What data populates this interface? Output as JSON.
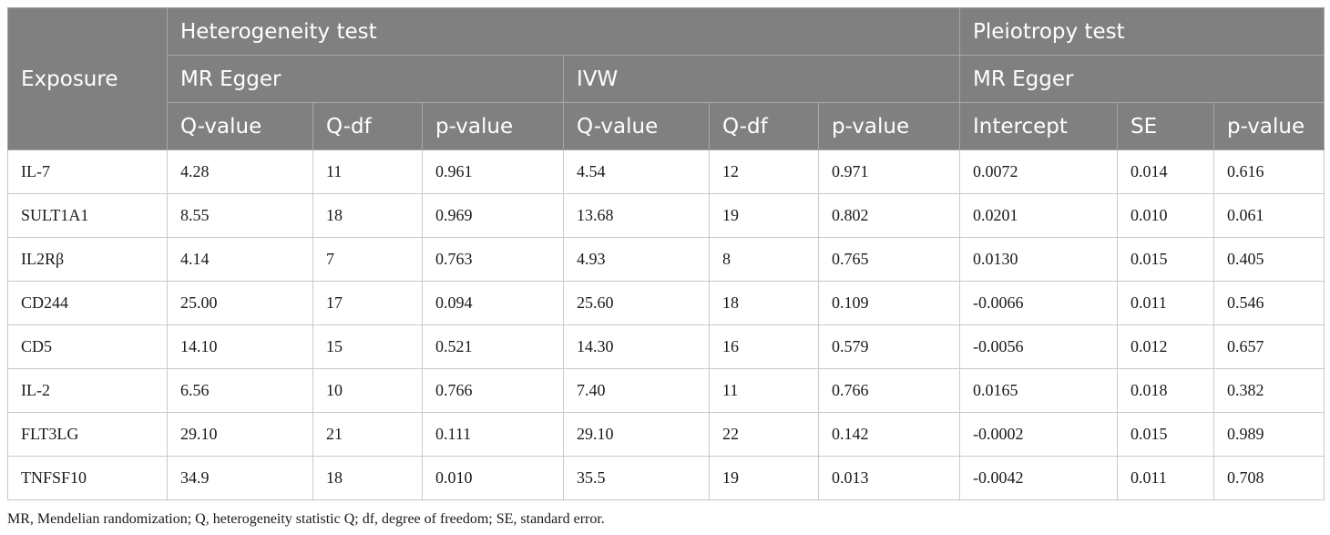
{
  "header": {
    "exposure": "Exposure",
    "heterogeneity_test": "Heterogeneity test",
    "pleiotropy_test": "Pleiotropy test",
    "mr_egger_het": "MR Egger",
    "ivw": "IVW",
    "mr_egger_plei": "MR Egger",
    "columns": [
      "Q-value",
      "Q-df",
      "p-value",
      "Q-value",
      "Q-df",
      "p-value",
      "Intercept",
      "SE",
      "p-value"
    ]
  },
  "rows": [
    {
      "exposure": "IL-7",
      "values": [
        "4.28",
        "11",
        "0.961",
        "4.54",
        "12",
        "0.971",
        "0.0072",
        "0.014",
        "0.616"
      ]
    },
    {
      "exposure": "SULT1A1",
      "values": [
        "8.55",
        "18",
        "0.969",
        "13.68",
        "19",
        "0.802",
        "0.0201",
        "0.010",
        "0.061"
      ]
    },
    {
      "exposure": "IL2Rβ",
      "values": [
        "4.14",
        "7",
        "0.763",
        "4.93",
        "8",
        "0.765",
        "0.0130",
        "0.015",
        "0.405"
      ]
    },
    {
      "exposure": "CD244",
      "values": [
        "25.00",
        "17",
        "0.094",
        "25.60",
        "18",
        "0.109",
        "-0.0066",
        "0.011",
        "0.546"
      ]
    },
    {
      "exposure": "CD5",
      "values": [
        "14.10",
        "15",
        "0.521",
        "14.30",
        "16",
        "0.579",
        "-0.0056",
        "0.012",
        "0.657"
      ]
    },
    {
      "exposure": "IL-2",
      "values": [
        "6.56",
        "10",
        "0.766",
        "7.40",
        "11",
        "0.766",
        "0.0165",
        "0.018",
        "0.382"
      ]
    },
    {
      "exposure": "FLT3LG",
      "values": [
        "29.10",
        "21",
        "0.111",
        "29.10",
        "22",
        "0.142",
        "-0.0002",
        "0.015",
        "0.989"
      ]
    },
    {
      "exposure": "TNFSF10",
      "values": [
        "34.9",
        "18",
        "0.010",
        "35.5",
        "19",
        "0.013",
        "-0.0042",
        "0.011",
        "0.708"
      ]
    }
  ],
  "footnote": "MR, Mendelian randomization; Q, heterogeneity statistic Q; df, degree of freedom; SE, standard error.",
  "colors": {
    "header_bg": "#808080",
    "header_text": "#ffffff",
    "border": "#c9c9c9"
  }
}
